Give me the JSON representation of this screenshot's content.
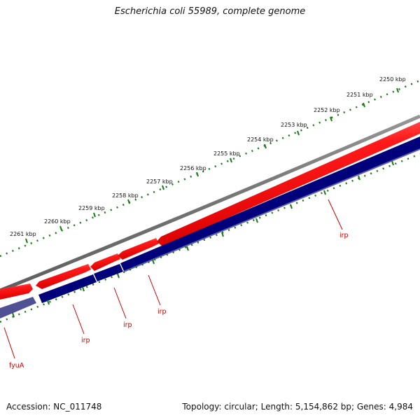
{
  "title": "Escherichia coli 55989, complete genome",
  "footer": {
    "accession": "Accession: NC_011748",
    "summary": "Topology: circular; Length: 5,154,862 bp; Genes: 4,984"
  },
  "colors": {
    "backbone": "#808080",
    "forward_cds": "#ff0000",
    "reverse_cds": "#00007a",
    "reverse_cds_light": "#505095",
    "ticks": "#1a7a1a",
    "gene_label": "#cc0000"
  },
  "ticks": [
    {
      "kbp": 2250,
      "label": "2250 kbp"
    },
    {
      "kbp": 2251,
      "label": "2251 kbp"
    },
    {
      "kbp": 2252,
      "label": "2252 kbp"
    },
    {
      "kbp": 2253,
      "label": "2253 kbp"
    },
    {
      "kbp": 2254,
      "label": "2254 kbp"
    },
    {
      "kbp": 2255,
      "label": "2255 kbp"
    },
    {
      "kbp": 2256,
      "label": "2256 kbp"
    },
    {
      "kbp": 2257,
      "label": "2257 kbp"
    },
    {
      "kbp": 2258,
      "label": "2258 kbp"
    },
    {
      "kbp": 2259,
      "label": "2259 kbp"
    },
    {
      "kbp": 2260,
      "label": "2260 kbp"
    },
    {
      "kbp": 2261,
      "label": "2261 kbp"
    }
  ],
  "gene_labels": [
    "fyuA",
    "irp",
    "irp",
    "irp",
    "irp"
  ]
}
